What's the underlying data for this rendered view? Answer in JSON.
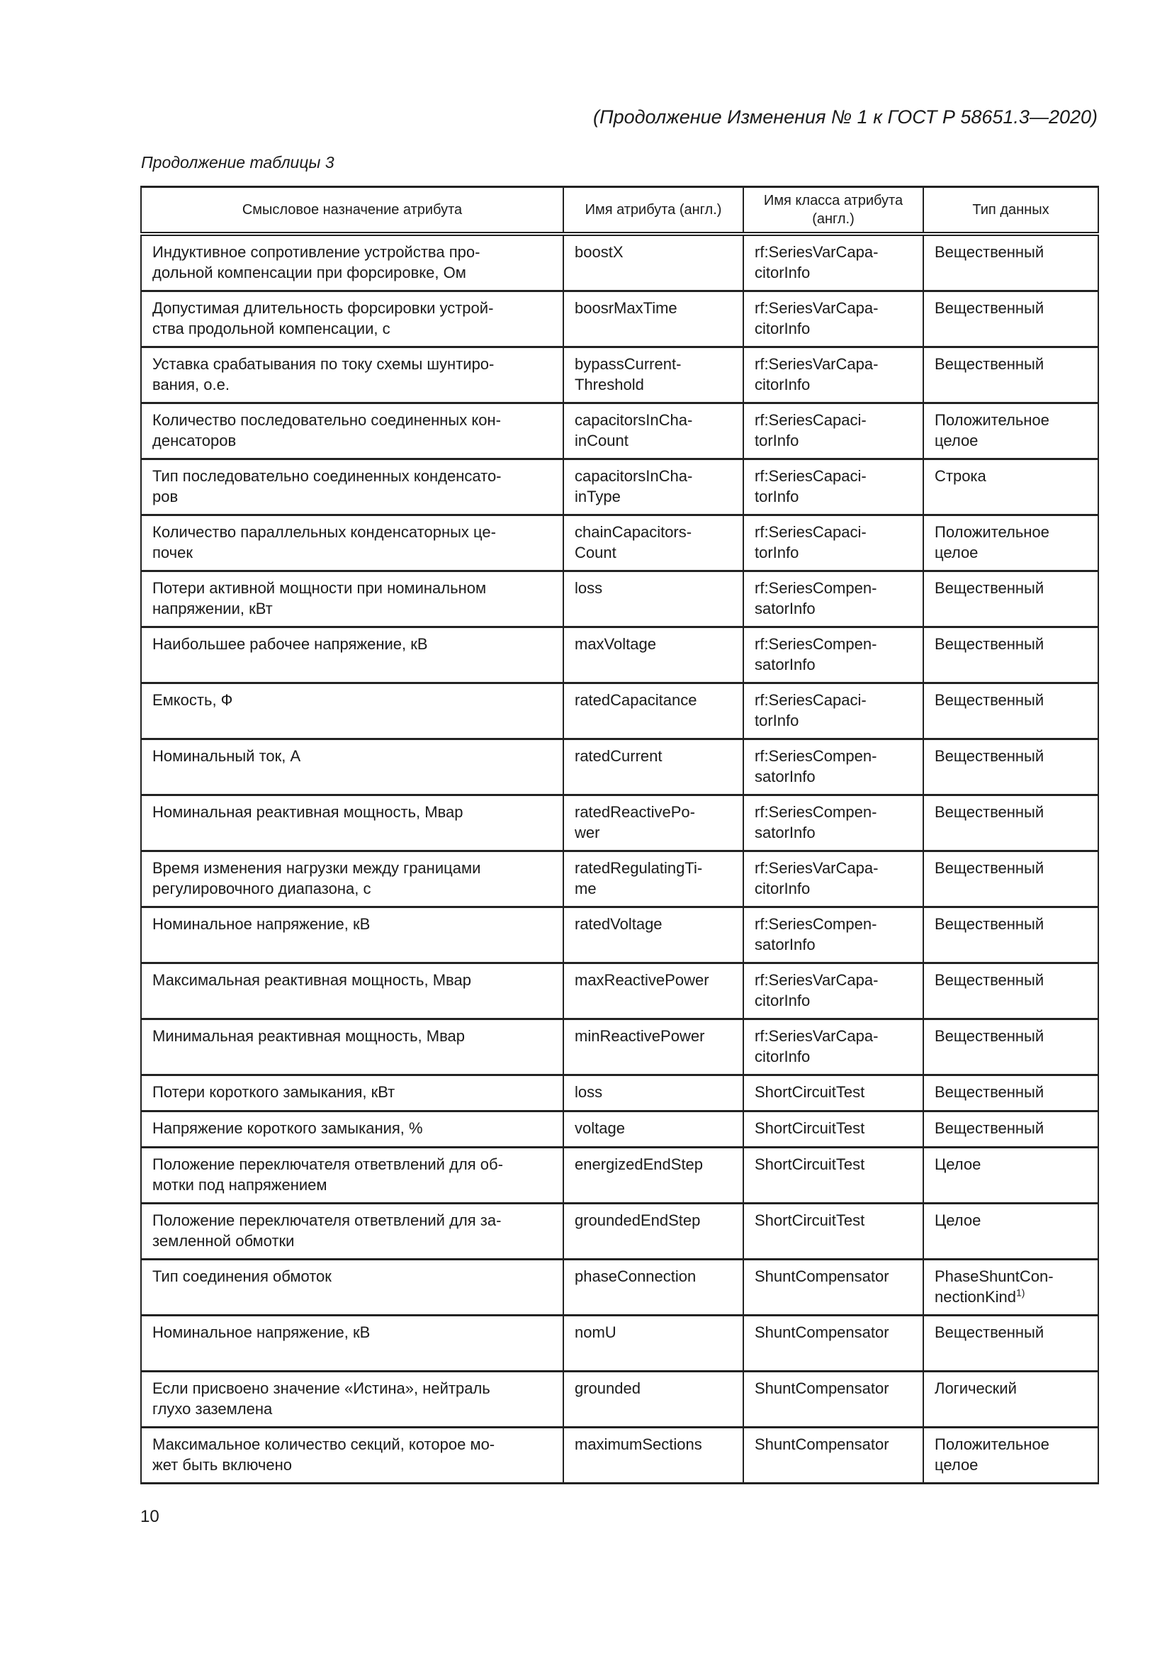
{
  "running_head": "(Продолжение Изменения № 1 к ГОСТ Р 58651.3—2020)",
  "caption": "Продолжение таблицы 3",
  "table": {
    "headers": [
      "Смысловое назначение атрибута",
      "Имя атрибута (англ.)",
      "Имя класса атрибута (англ.)",
      "Тип данных"
    ],
    "rows": [
      {
        "meaning": "Индуктивное сопротивление устройства про-\nдольной компенсации при форсировке, Ом",
        "attr": "boostX",
        "cls": "rf:SeriesVarCapa-\ncitorInfo",
        "type": "Вещественный"
      },
      {
        "meaning": "Допустимая длительность форсировки устрой-\nства продольной компенсации, с",
        "attr": "boosrMaxTime",
        "cls": "rf:SeriesVarCapa-\ncitorInfo",
        "type": "Вещественный"
      },
      {
        "meaning": "Уставка срабатывания по току схемы шунтиро-\nвания, о.е.",
        "attr": "bypassCurrent-\nThreshold",
        "cls": "rf:SeriesVarCapa-\ncitorInfo",
        "type": "Вещественный"
      },
      {
        "meaning": "Количество последовательно соединенных кон-\nденсаторов",
        "attr": "capacitorsInCha-\ninCount",
        "cls": "rf:SeriesCapaci-\ntorInfo",
        "type": "Положительное\nцелое"
      },
      {
        "meaning": "Тип последовательно соединенных конденсато-\nров",
        "attr": "capacitorsInCha-\ninType",
        "cls": "rf:SeriesCapaci-\ntorInfo",
        "type": "Строка"
      },
      {
        "meaning": "Количество параллельных конденсаторных це-\nпочек",
        "attr": "chainCapacitors-\nCount",
        "cls": "rf:SeriesCapaci-\ntorInfo",
        "type": "Положительное\nцелое"
      },
      {
        "meaning": "Потери активной мощности при номинальном\nнапряжении, кВт",
        "attr": "loss",
        "cls": "rf:SeriesCompen-\nsatorInfo",
        "type": "Вещественный"
      },
      {
        "meaning": "Наибольшее рабочее напряжение, кВ",
        "attr": "maxVoltage",
        "cls": "rf:SeriesCompen-\nsatorInfo",
        "type": "Вещественный"
      },
      {
        "meaning": "Емкость, Ф",
        "attr": "ratedCapacitance",
        "cls": "rf:SeriesCapaci-\ntorInfo",
        "type": "Вещественный"
      },
      {
        "meaning": "Номинальный ток, А",
        "attr": "ratedCurrent",
        "cls": "rf:SeriesCompen-\nsatorInfo",
        "type": "Вещественный"
      },
      {
        "meaning": "Номинальная реактивная мощность, Мвар",
        "attr": "ratedReactivePo-\nwer",
        "cls": "rf:SeriesCompen-\nsatorInfo",
        "type": "Вещественный"
      },
      {
        "meaning": "Время изменения нагрузки между границами\nрегулировочного диапазона, с",
        "attr": "ratedRegulatingTi-\nme",
        "cls": "rf:SeriesVarCapa-\ncitorInfo",
        "type": "Вещественный"
      },
      {
        "meaning": "Номинальное напряжение, кВ",
        "attr": "ratedVoltage",
        "cls": "rf:SeriesCompen-\nsatorInfo",
        "type": "Вещественный"
      },
      {
        "meaning": "Максимальная реактивная мощность, Мвар",
        "attr": "maxReactivePower",
        "cls": "rf:SeriesVarCapa-\ncitorInfo",
        "type": "Вещественный"
      },
      {
        "meaning": "Минимальная реактивная мощность, Мвар",
        "attr": "minReactivePower",
        "cls": "rf:SeriesVarCapa-\ncitorInfo",
        "type": "Вещественный"
      },
      {
        "meaning": "Потери короткого замыкания, кВт",
        "attr": "loss",
        "cls": "ShortCircuitTest",
        "type": "Вещественный"
      },
      {
        "meaning": "Напряжение короткого замыкания, %",
        "attr": "voltage",
        "cls": "ShortCircuitTest",
        "type": "Вещественный"
      },
      {
        "meaning": "Положение переключателя ответвлений для об-\nмотки под напряжением",
        "attr": "energizedEndStep",
        "cls": "ShortCircuitTest",
        "type": "Целое"
      },
      {
        "meaning": "Положение переключателя ответвлений для за-\nземленной обмотки",
        "attr": "groundedEndStep",
        "cls": "ShortCircuitTest",
        "type": "Целое"
      },
      {
        "meaning": "Тип соединения обмоток",
        "attr": "phaseConnection",
        "cls": "ShuntCompensator",
        "type": "PhaseShuntCon-\nnectionKind",
        "type_note": "1)"
      },
      {
        "meaning": "Номинальное напряжение, кВ",
        "attr": "nomU",
        "cls": "ShuntCompensator",
        "type": "Вещественный"
      },
      {
        "meaning": "Если присвоено значение «Истина», нейтраль\nглухо заземлена",
        "attr": "grounded",
        "cls": "ShuntCompensator",
        "type": "Логический"
      },
      {
        "meaning": "Максимальное количество секций, которое мо-\nжет быть включено",
        "attr": "maximumSections",
        "cls": "ShuntCompensator",
        "type": "Положительное\nцелое"
      }
    ]
  },
  "page_number": "10"
}
